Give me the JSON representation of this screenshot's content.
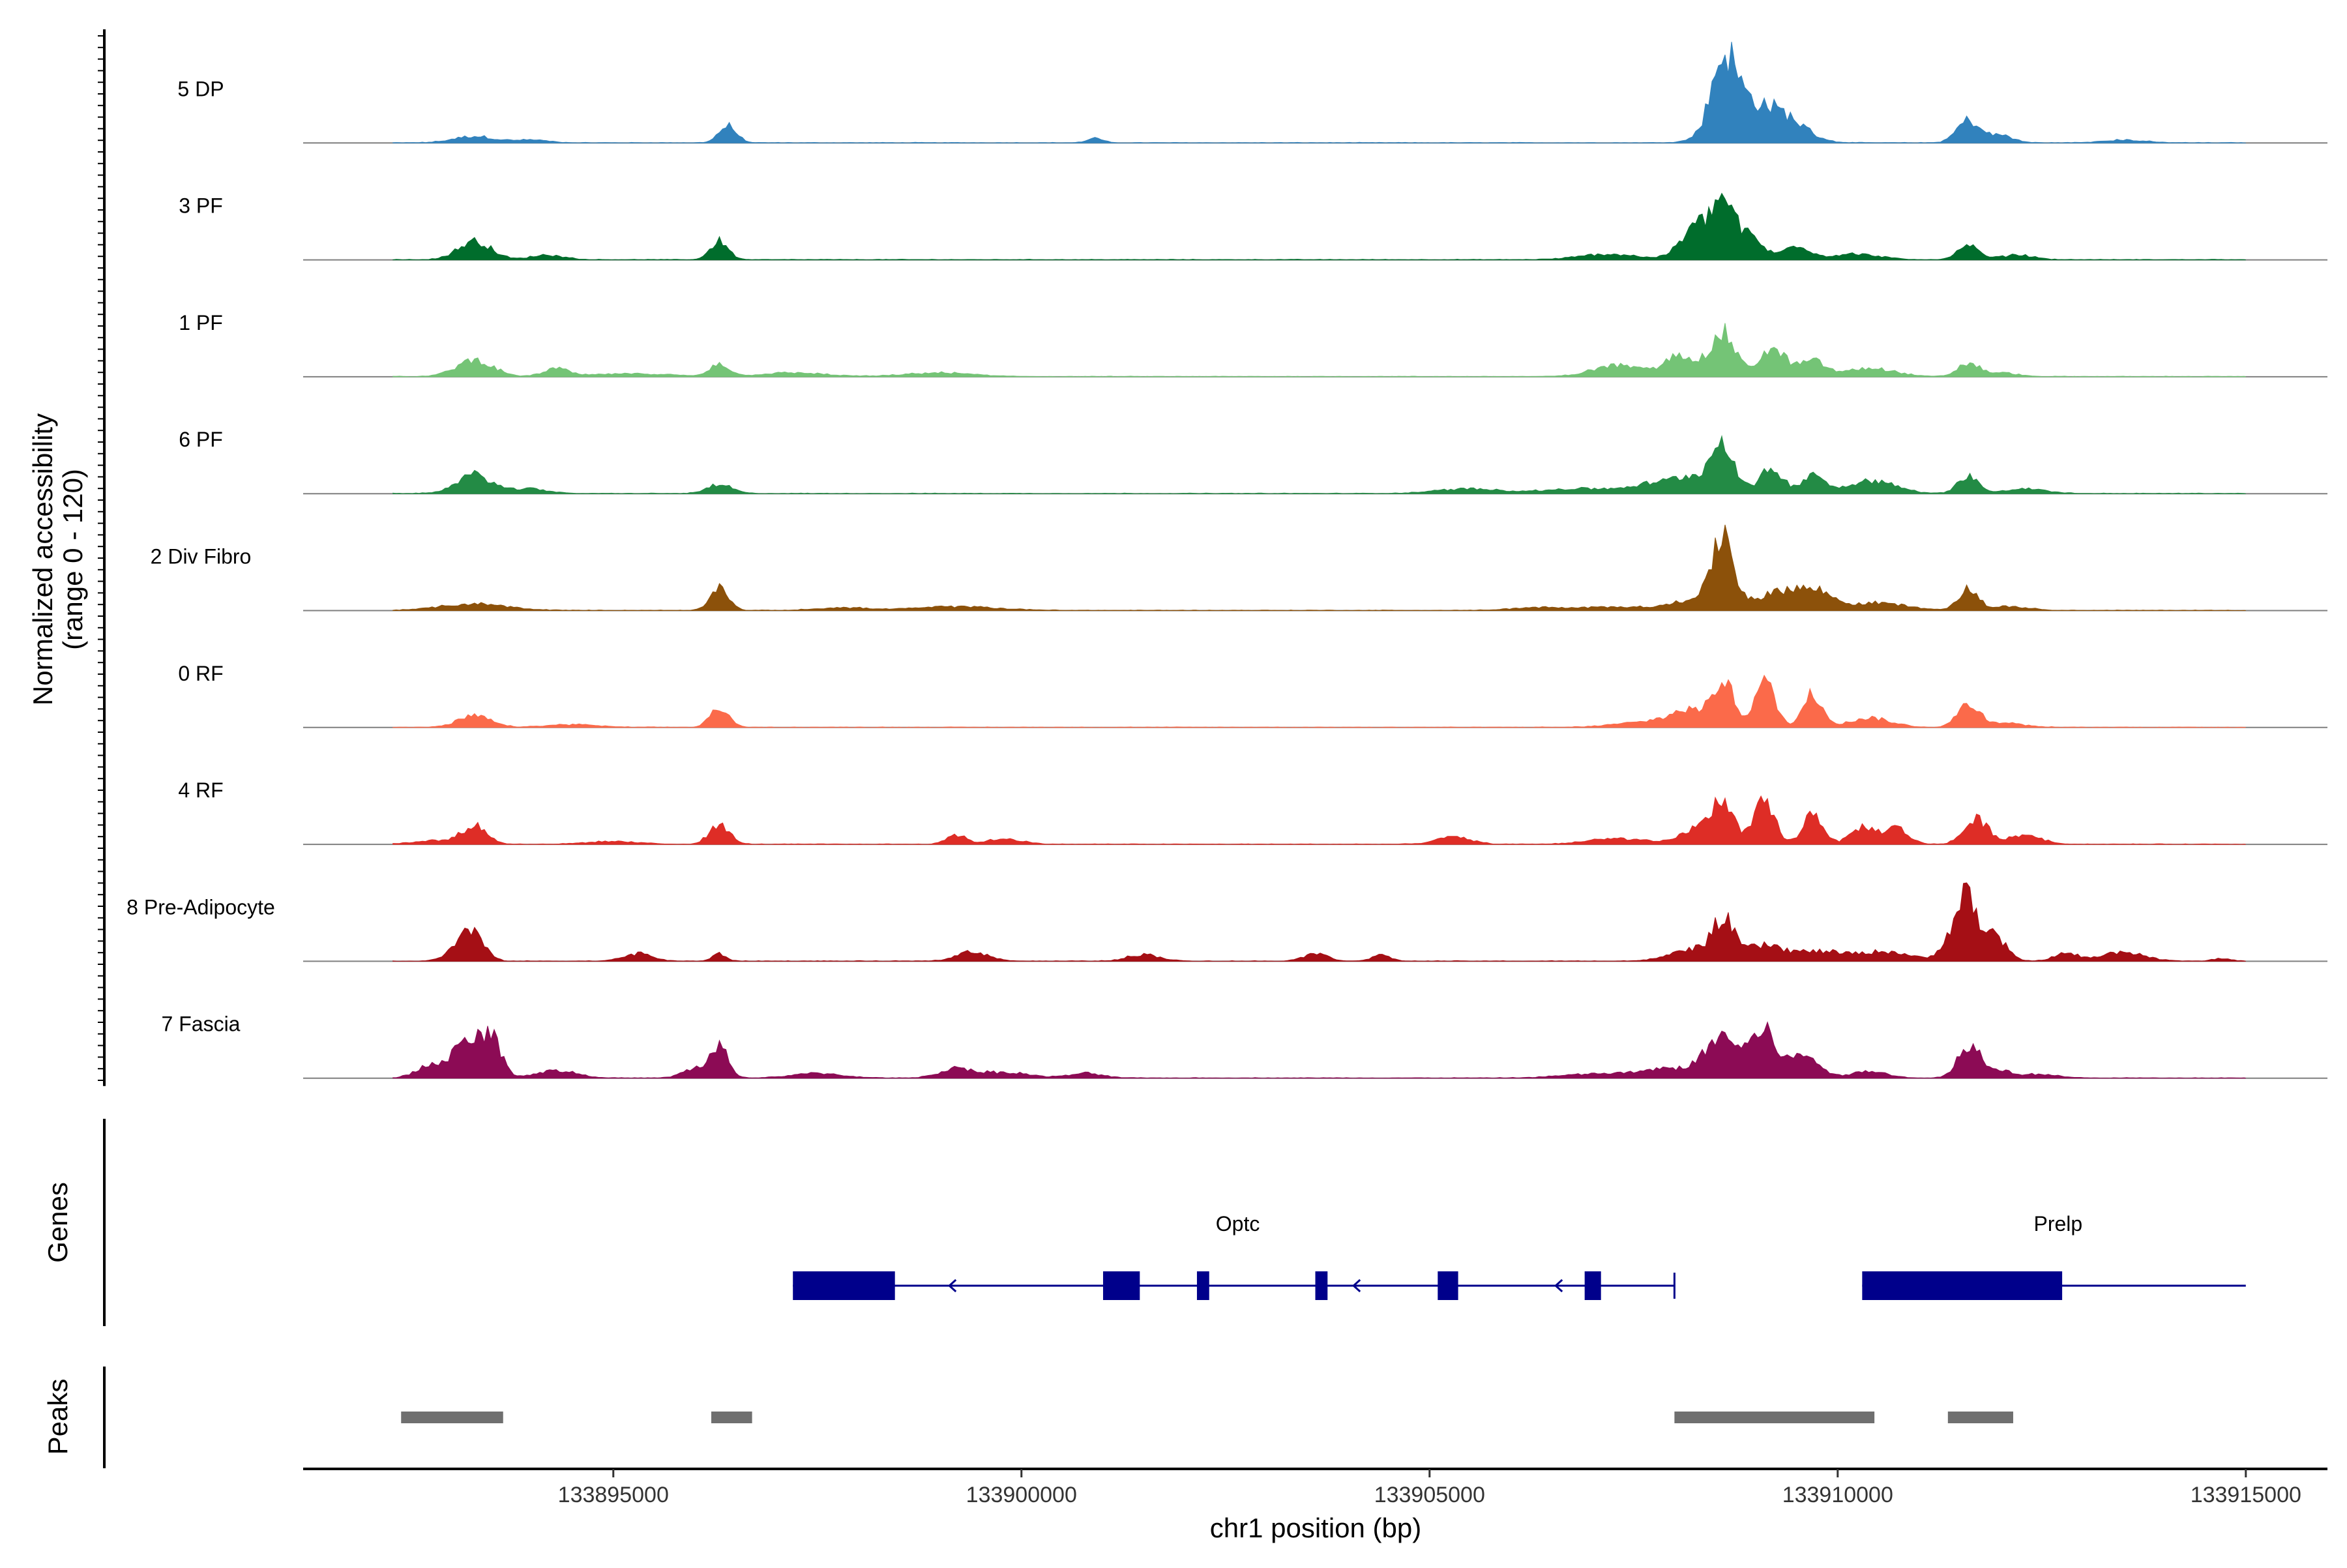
{
  "chart_data": {
    "type": "area",
    "title": "",
    "ylabel": [
      "Normalized accessibility",
      "(range 0 - 120)"
    ],
    "ylim": [
      0,
      120
    ],
    "xlabel": "chr1 position (bp)",
    "xlim": [
      133891200,
      133916000
    ],
    "xticks": [
      133895000,
      133900000,
      133905000,
      133910000,
      133915000
    ],
    "xtick_labels": [
      "133895000",
      "133900000",
      "133905000",
      "133910000",
      "133915000"
    ],
    "track_start": 133891200,
    "track_end": 133915000,
    "series": [
      {
        "name": "5 DP",
        "color": "#3182bd",
        "start": 133892300,
        "end": 133915000,
        "peaks": [
          [
            133893300,
            7,
            250
          ],
          [
            133894000,
            3,
            200
          ],
          [
            133896400,
            18,
            110
          ],
          [
            133900900,
            5,
            90
          ],
          [
            133908600,
            72,
            150
          ],
          [
            133908900,
            40,
            320
          ],
          [
            133909400,
            18,
            250
          ],
          [
            133911600,
            24,
            140
          ],
          [
            133912000,
            8,
            150
          ],
          [
            133913500,
            3,
            250
          ]
        ]
      },
      {
        "name": "3 PF",
        "color": "#006d2c",
        "start": 133892300,
        "end": 133915000,
        "peaks": [
          [
            133893300,
            20,
            200
          ],
          [
            133894200,
            5,
            200
          ],
          [
            133896300,
            20,
            110
          ],
          [
            133907200,
            6,
            350
          ],
          [
            133908300,
            38,
            200
          ],
          [
            133908600,
            50,
            120
          ],
          [
            133908900,
            26,
            170
          ],
          [
            133909500,
            16,
            150
          ],
          [
            133910200,
            6,
            300
          ],
          [
            133911600,
            14,
            130
          ],
          [
            133912200,
            5,
            200
          ]
        ]
      },
      {
        "name": "1 PF",
        "color": "#74c476",
        "start": 133892300,
        "end": 133915000,
        "peaks": [
          [
            133893300,
            18,
            220
          ],
          [
            133894300,
            8,
            150
          ],
          [
            133895200,
            3,
            500
          ],
          [
            133896300,
            14,
            110
          ],
          [
            133897200,
            4,
            400
          ],
          [
            133899000,
            4,
            400
          ],
          [
            133907300,
            12,
            300
          ],
          [
            133908100,
            24,
            200
          ],
          [
            133908600,
            46,
            140
          ],
          [
            133909200,
            28,
            180
          ],
          [
            133909700,
            16,
            150
          ],
          [
            133910400,
            9,
            300
          ],
          [
            133911600,
            14,
            130
          ],
          [
            133912000,
            4,
            200
          ]
        ]
      },
      {
        "name": "6 PF",
        "color": "#238b45",
        "start": 133892300,
        "end": 133915000,
        "peaks": [
          [
            133893300,
            20,
            220
          ],
          [
            133894000,
            5,
            200
          ],
          [
            133896300,
            10,
            150
          ],
          [
            133905500,
            5,
            400
          ],
          [
            133906800,
            5,
            400
          ],
          [
            133907800,
            10,
            350
          ],
          [
            133908600,
            44,
            120
          ],
          [
            133908400,
            18,
            300
          ],
          [
            133909200,
            26,
            140
          ],
          [
            133909700,
            22,
            120
          ],
          [
            133910400,
            14,
            300
          ],
          [
            133911600,
            20,
            120
          ],
          [
            133912300,
            5,
            250
          ]
        ]
      },
      {
        "name": "2 Div Fibro",
        "color": "#8c510a",
        "start": 133892300,
        "end": 133915000,
        "peaks": [
          [
            133893300,
            7,
            400
          ],
          [
            133896300,
            24,
            110
          ],
          [
            133897800,
            3,
            300
          ],
          [
            133899200,
            4,
            500
          ],
          [
            133906300,
            3,
            300
          ],
          [
            133907300,
            4,
            400
          ],
          [
            133908600,
            66,
            110
          ],
          [
            133908500,
            20,
            350
          ],
          [
            133909400,
            22,
            250
          ],
          [
            133909800,
            14,
            180
          ],
          [
            133910500,
            8,
            350
          ],
          [
            133911600,
            22,
            120
          ],
          [
            133912100,
            4,
            250
          ]
        ]
      },
      {
        "name": "0 RF",
        "color": "#fb6a4a",
        "start": 133892300,
        "end": 133915000,
        "peaks": [
          [
            133893300,
            12,
            200
          ],
          [
            133894500,
            3,
            300
          ],
          [
            133896300,
            22,
            110
          ],
          [
            133907600,
            5,
            350
          ],
          [
            133908200,
            18,
            250
          ],
          [
            133908600,
            48,
            120
          ],
          [
            133909100,
            48,
            130
          ],
          [
            133909700,
            36,
            120
          ],
          [
            133910400,
            10,
            250
          ],
          [
            133911600,
            24,
            130
          ],
          [
            133912000,
            5,
            250
          ]
        ]
      },
      {
        "name": "4 RF",
        "color": "#de2d26",
        "start": 133892300,
        "end": 133915000,
        "peaks": [
          [
            133893300,
            20,
            150
          ],
          [
            133892800,
            4,
            250
          ],
          [
            133895000,
            3,
            300
          ],
          [
            133896300,
            22,
            120
          ],
          [
            133899200,
            10,
            120
          ],
          [
            133899800,
            6,
            200
          ],
          [
            133905300,
            8,
            200
          ],
          [
            133907300,
            6,
            350
          ],
          [
            133908300,
            18,
            200
          ],
          [
            133908600,
            46,
            120
          ],
          [
            133909100,
            44,
            130
          ],
          [
            133909700,
            34,
            120
          ],
          [
            133910300,
            18,
            140
          ],
          [
            133910700,
            18,
            150
          ],
          [
            133911700,
            26,
            150
          ],
          [
            133912300,
            10,
            200
          ]
        ]
      },
      {
        "name": "8 Pre-Adipocyte",
        "color": "#a50f15",
        "start": 133892300,
        "end": 133915000,
        "peaks": [
          [
            133893300,
            28,
            130
          ],
          [
            133893100,
            12,
            150
          ],
          [
            133895300,
            8,
            180
          ],
          [
            133896300,
            8,
            80
          ],
          [
            133899400,
            10,
            200
          ],
          [
            133901500,
            7,
            200
          ],
          [
            133903600,
            8,
            150
          ],
          [
            133904400,
            6,
            120
          ],
          [
            133908600,
            36,
            120
          ],
          [
            133908300,
            14,
            300
          ],
          [
            133909100,
            16,
            250
          ],
          [
            133909800,
            10,
            300
          ],
          [
            133910600,
            10,
            300
          ],
          [
            133911600,
            64,
            100
          ],
          [
            133911400,
            30,
            120
          ],
          [
            133911900,
            28,
            150
          ],
          [
            133912800,
            8,
            150
          ],
          [
            133913500,
            10,
            250
          ],
          [
            133914700,
            3,
            100
          ]
        ]
      },
      {
        "name": "7 Fascia",
        "color": "#8c0b55",
        "start": 133892300,
        "end": 133915000,
        "peaks": [
          [
            133892700,
            10,
            150
          ],
          [
            133893200,
            36,
            220
          ],
          [
            133893500,
            36,
            120
          ],
          [
            133894300,
            8,
            250
          ],
          [
            133896000,
            10,
            150
          ],
          [
            133896300,
            32,
            110
          ],
          [
            133897500,
            5,
            300
          ],
          [
            133899200,
            10,
            200
          ],
          [
            133899800,
            6,
            300
          ],
          [
            133900800,
            5,
            200
          ],
          [
            133907000,
            4,
            400
          ],
          [
            133908000,
            10,
            400
          ],
          [
            133908600,
            42,
            200
          ],
          [
            133909100,
            48,
            160
          ],
          [
            133909600,
            24,
            180
          ],
          [
            133910400,
            8,
            200
          ],
          [
            133911600,
            34,
            130
          ],
          [
            133911900,
            10,
            200
          ],
          [
            133912500,
            4,
            200
          ]
        ]
      }
    ],
    "genes": {
      "label": "Genes",
      "items": [
        {
          "name": "Optc",
          "strand": "-",
          "tx_start": 133897200,
          "tx_end": 133908000,
          "exons": [
            [
              133897200,
              133898450
            ],
            [
              133901000,
              133901450
            ],
            [
              133902150,
              133902300
            ],
            [
              133903600,
              133903750
            ],
            [
              133905100,
              133905350
            ],
            [
              133906900,
              133907100
            ]
          ]
        },
        {
          "name": "Prelp",
          "strand": "-",
          "tx_start": 133910300,
          "tx_end": 133915000,
          "exons": [
            [
              133910300,
              133912750
            ]
          ]
        }
      ]
    },
    "peaks_track": {
      "label": "Peaks",
      "regions": [
        [
          133892400,
          133893650
        ],
        [
          133896200,
          133896700
        ],
        [
          133908000,
          133910450
        ],
        [
          133911350,
          133912150
        ]
      ]
    }
  }
}
